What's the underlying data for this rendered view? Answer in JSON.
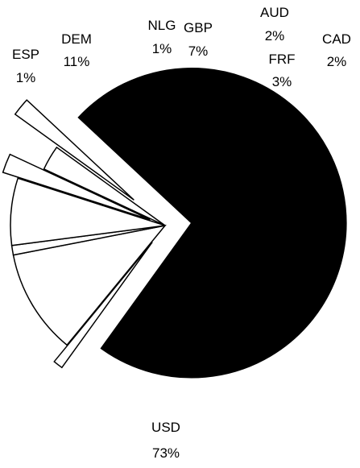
{
  "chart_data": {
    "type": "pie",
    "title": "",
    "exploded": true,
    "slices": [
      {
        "label": "USD",
        "percent": "73%",
        "value": 73,
        "fill": "#000000"
      },
      {
        "label": "ESP",
        "percent": "1%",
        "value": 1,
        "fill": "#ffffff"
      },
      {
        "label": "DEM",
        "percent": "11%",
        "value": 11,
        "fill": "#ffffff"
      },
      {
        "label": "NLG",
        "percent": "1%",
        "value": 1,
        "fill": "#ffffff"
      },
      {
        "label": "GBP",
        "percent": "7%",
        "value": 7,
        "fill": "#ffffff"
      },
      {
        "label": "AUD",
        "percent": "2%",
        "value": 2,
        "fill": "#ffffff"
      },
      {
        "label": "FRF",
        "percent": "3%",
        "value": 3,
        "fill": "#ffffff"
      },
      {
        "label": "CAD",
        "percent": "2%",
        "value": 2,
        "fill": "#ffffff"
      }
    ]
  }
}
